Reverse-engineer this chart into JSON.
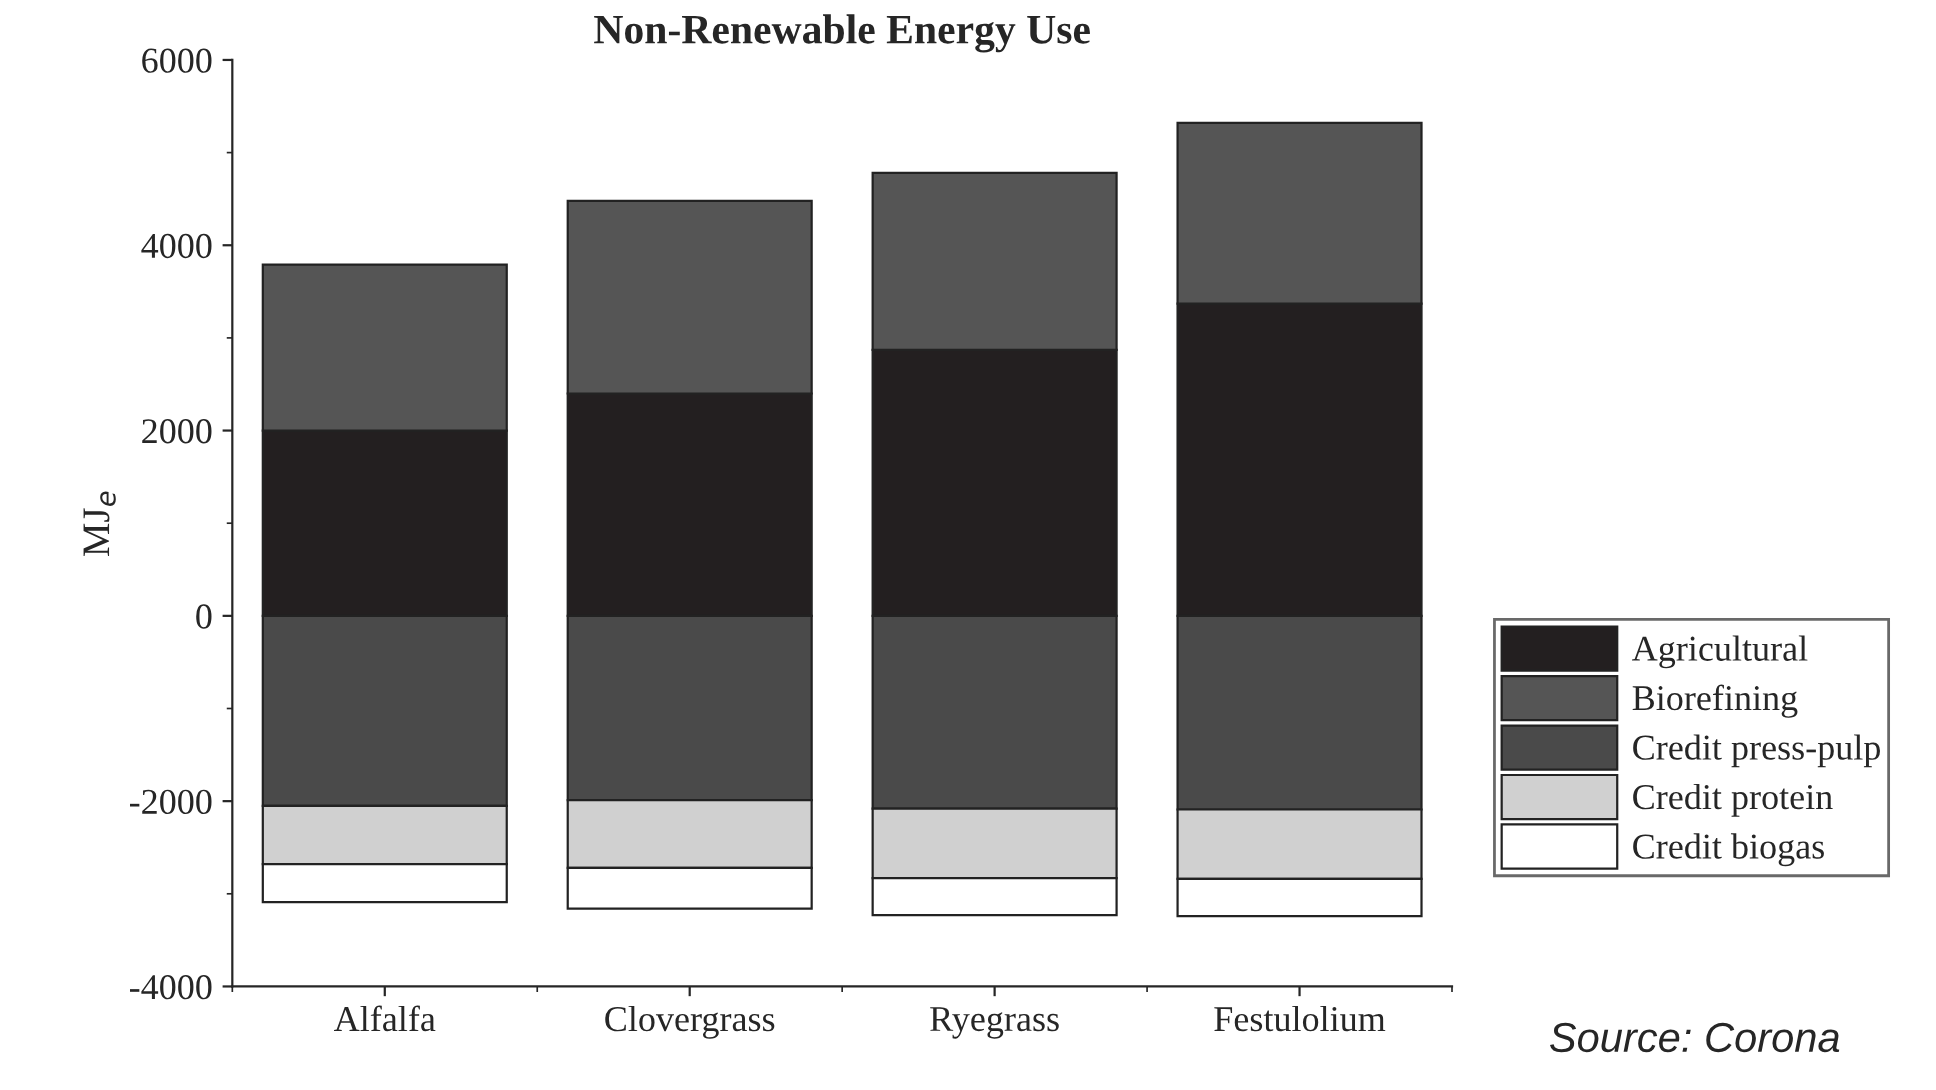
{
  "chart_data": {
    "type": "bar",
    "title": "Non-Renewable Energy Use",
    "ylabel": "MJ$_{e}$",
    "categories": [
      "Alfalfa",
      "Clovergrass",
      "Ryegrass",
      "Festulolium"
    ],
    "stacked": true,
    "series": [
      {
        "name": "Agricultural",
        "color": "#231f20",
        "values": [
          2000,
          2400,
          2870,
          3370
        ]
      },
      {
        "name": "Biorefining",
        "color": "#555555",
        "values": [
          1790,
          2080,
          1910,
          1950
        ]
      },
      {
        "name": "Credit press-pulp",
        "color": "#4a4a4a",
        "values": [
          -2050,
          -1990,
          -2080,
          -2090
        ]
      },
      {
        "name": "Credit protein",
        "color": "#d0d0d0",
        "values": [
          -630,
          -730,
          -750,
          -750
        ]
      },
      {
        "name": "Credit biogas",
        "color": "#ffffff",
        "values": [
          -410,
          -440,
          -400,
          -400
        ]
      }
    ],
    "ylim": [
      -4000,
      6000
    ],
    "yticks": [
      -4000,
      -2000,
      0,
      2000,
      4000,
      6000
    ],
    "grid": false,
    "legend": "bottom right",
    "annotations": [
      "Source: Corona"
    ]
  }
}
